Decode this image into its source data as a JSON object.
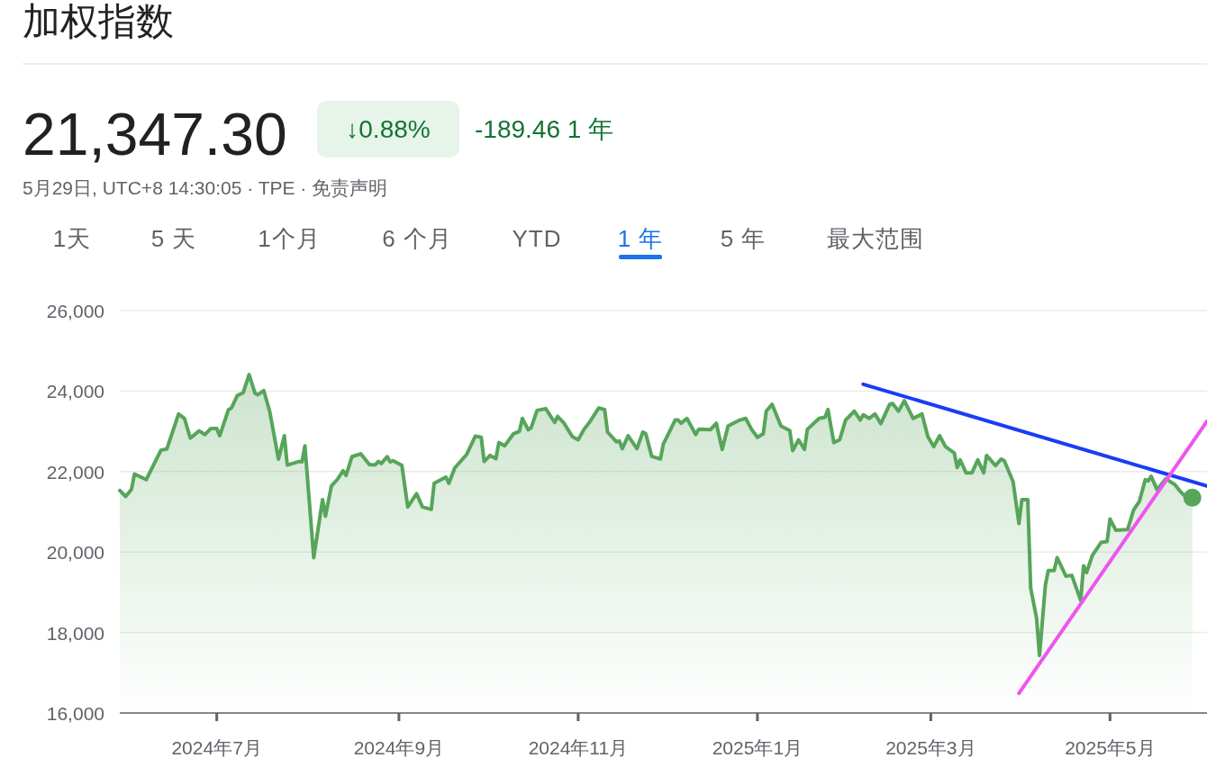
{
  "chart_data": {
    "type": "line",
    "title": "加权指数",
    "subtitle": "21,347.30",
    "annotations": [
      "↓0.88%",
      "-189.46 1 年",
      "5月29日, UTC+8 14:30:05 · TPE · 免责声明",
      "1天",
      "5 天",
      "1个月",
      "6 个月",
      "YTD",
      "1 年",
      "5 年",
      "最大范围"
    ],
    "xlim": [
      "2024-05-29",
      "2025-06-03"
    ],
    "xticks": [
      {
        "value": "2024-07-01",
        "label": "2024年7月"
      },
      {
        "value": "2024-09-01",
        "label": "2024年9月"
      },
      {
        "value": "2024-11-01",
        "label": "2024年11月"
      },
      {
        "value": "2025-01-01",
        "label": "2025年1月"
      },
      {
        "value": "2025-03-01",
        "label": "2025年3月"
      },
      {
        "value": "2025-05-01",
        "label": "2025年5月"
      }
    ],
    "ylim": [
      16000,
      26000
    ],
    "yticks": [
      {
        "value": 16000,
        "label": "16,000"
      },
      {
        "value": 18000,
        "label": "18,000"
      },
      {
        "value": 20000,
        "label": "20,000"
      },
      {
        "value": 22000,
        "label": "22,000"
      },
      {
        "value": 24000,
        "label": "24,000"
      },
      {
        "value": 26000,
        "label": "26,000"
      }
    ],
    "grid": "y",
    "series": [
      {
        "type": "area",
        "color": "#57a55a",
        "x": [
          "2024-05-29",
          "2024-05-31",
          "2024-06-02",
          "2024-06-03",
          "2024-06-07",
          "2024-06-12",
          "2024-06-14",
          "2024-06-18",
          "2024-06-20",
          "2024-06-22",
          "2024-06-25",
          "2024-06-27",
          "2024-06-29",
          "2024-07-01",
          "2024-07-02",
          "2024-07-05",
          "2024-07-06",
          "2024-07-08",
          "2024-07-10",
          "2024-07-12",
          "2024-07-14",
          "2024-07-15",
          "2024-07-17",
          "2024-07-19",
          "2024-07-22",
          "2024-07-24",
          "2024-07-25",
          "2024-07-29",
          "2024-07-30",
          "2024-07-31",
          "2024-08-03",
          "2024-08-06",
          "2024-08-07",
          "2024-08-09",
          "2024-08-11",
          "2024-08-13",
          "2024-08-14",
          "2024-08-16",
          "2024-08-19",
          "2024-08-22",
          "2024-08-24",
          "2024-08-25",
          "2024-08-26",
          "2024-08-28",
          "2024-08-29",
          "2024-08-30",
          "2024-09-02",
          "2024-09-04",
          "2024-09-07",
          "2024-09-09",
          "2024-09-12",
          "2024-09-13",
          "2024-09-17",
          "2024-09-18",
          "2024-09-20",
          "2024-09-24",
          "2024-09-27",
          "2024-09-29",
          "2024-09-30",
          "2024-10-02",
          "2024-10-04",
          "2024-10-05",
          "2024-10-07",
          "2024-10-10",
          "2024-10-12",
          "2024-10-13",
          "2024-10-15",
          "2024-10-16",
          "2024-10-18",
          "2024-10-21",
          "2024-10-24",
          "2024-10-25",
          "2024-10-27",
          "2024-10-30",
          "2024-11-01",
          "2024-11-03",
          "2024-11-05",
          "2024-11-08",
          "2024-11-10",
          "2024-11-11",
          "2024-11-14",
          "2024-11-15",
          "2024-11-16",
          "2024-11-18",
          "2024-11-21",
          "2024-11-23",
          "2024-11-24",
          "2024-11-26",
          "2024-11-29",
          "2024-11-30",
          "2024-12-01",
          "2024-12-04",
          "2024-12-05",
          "2024-12-06",
          "2024-12-08",
          "2024-12-11",
          "2024-12-12",
          "2024-12-16",
          "2024-12-18",
          "2024-12-20",
          "2024-12-22",
          "2024-12-23",
          "2024-12-26",
          "2024-12-28",
          "2024-12-30",
          "2025-01-01",
          "2025-01-03",
          "2025-01-04",
          "2025-01-06",
          "2025-01-09",
          "2025-01-12",
          "2025-01-13",
          "2025-01-15",
          "2025-01-17",
          "2025-01-18",
          "2025-01-22",
          "2025-01-24",
          "2025-01-25",
          "2025-01-27",
          "2025-01-29",
          "2025-01-31",
          "2025-02-03",
          "2025-02-05",
          "2025-02-06",
          "2025-02-08",
          "2025-02-10",
          "2025-02-12",
          "2025-02-15",
          "2025-02-16",
          "2025-02-18",
          "2025-02-20",
          "2025-02-23",
          "2025-02-26",
          "2025-02-28",
          "2025-03-02",
          "2025-03-04",
          "2025-03-06",
          "2025-03-09",
          "2025-03-10",
          "2025-03-11",
          "2025-03-13",
          "2025-03-15",
          "2025-03-17",
          "2025-03-19",
          "2025-03-20",
          "2025-03-23",
          "2025-03-25",
          "2025-03-26",
          "2025-03-29",
          "2025-03-31",
          "2025-04-01",
          "2025-04-03",
          "2025-04-04",
          "2025-04-06",
          "2025-04-07",
          "2025-04-09",
          "2025-04-10",
          "2025-04-12",
          "2025-04-13",
          "2025-04-16",
          "2025-04-18",
          "2025-04-21",
          "2025-04-22",
          "2025-04-23",
          "2025-04-25",
          "2025-04-28",
          "2025-04-30",
          "2025-05-01",
          "2025-05-03",
          "2025-05-07",
          "2025-05-09",
          "2025-05-11",
          "2025-05-13",
          "2025-05-14",
          "2025-05-15",
          "2025-05-17",
          "2025-05-20",
          "2025-05-23",
          "2025-05-25",
          "2025-05-27",
          "2025-05-29"
        ],
        "values": [
          21530,
          21380,
          21560,
          21940,
          21800,
          22530,
          22560,
          23430,
          23320,
          22830,
          23010,
          22920,
          23070,
          23070,
          22890,
          23540,
          23580,
          23890,
          23960,
          24410,
          23950,
          23910,
          24010,
          23500,
          22310,
          22890,
          22160,
          22250,
          22240,
          22640,
          19860,
          21300,
          20890,
          21640,
          21800,
          22020,
          21900,
          22370,
          22440,
          22170,
          22170,
          22250,
          22200,
          22370,
          22240,
          22270,
          22150,
          21120,
          21450,
          21120,
          21060,
          21710,
          21860,
          21710,
          22090,
          22420,
          22880,
          22850,
          22250,
          22400,
          22320,
          22720,
          22640,
          22940,
          23000,
          23320,
          23040,
          23090,
          23520,
          23560,
          23220,
          23370,
          23220,
          22870,
          22790,
          23050,
          23240,
          23580,
          23540,
          22980,
          22740,
          22760,
          22570,
          22890,
          22570,
          22980,
          22940,
          22380,
          22310,
          22690,
          22830,
          23280,
          23280,
          23200,
          23320,
          22920,
          23050,
          23040,
          23200,
          22550,
          23130,
          23170,
          23280,
          23320,
          23050,
          22850,
          22940,
          23500,
          23670,
          23130,
          23020,
          22520,
          22790,
          22550,
          23050,
          23320,
          23350,
          23540,
          22720,
          22790,
          23280,
          23500,
          23280,
          23410,
          23320,
          23430,
          23190,
          23670,
          23690,
          23500,
          23760,
          23320,
          23430,
          22870,
          22620,
          22890,
          22620,
          22460,
          22100,
          22290,
          21970,
          21970,
          22290,
          21970,
          22400,
          22150,
          22310,
          22270,
          21750,
          20710,
          21300,
          21300,
          19100,
          18360,
          17430,
          19180,
          19540,
          19540,
          19860,
          19400,
          19420,
          18800,
          19660,
          19490,
          19920,
          20240,
          20260,
          20820,
          20540,
          20560,
          21040,
          21260,
          21800,
          21770,
          21880,
          21550,
          21820,
          21680,
          21500,
          21350,
          21350
        ]
      },
      {
        "type": "scatter",
        "color": "#57a55a",
        "x": [
          "2025-05-29"
        ],
        "values": [
          21350
        ]
      },
      {
        "color": "#1a3cf5",
        "x": [
          "2025-02-06",
          "2025-06-03"
        ],
        "values": [
          24170,
          21640
        ]
      },
      {
        "color": "#ee55ee",
        "x": [
          "2025-03-31",
          "2025-06-03"
        ],
        "values": [
          16490,
          23250
        ]
      }
    ]
  }
}
